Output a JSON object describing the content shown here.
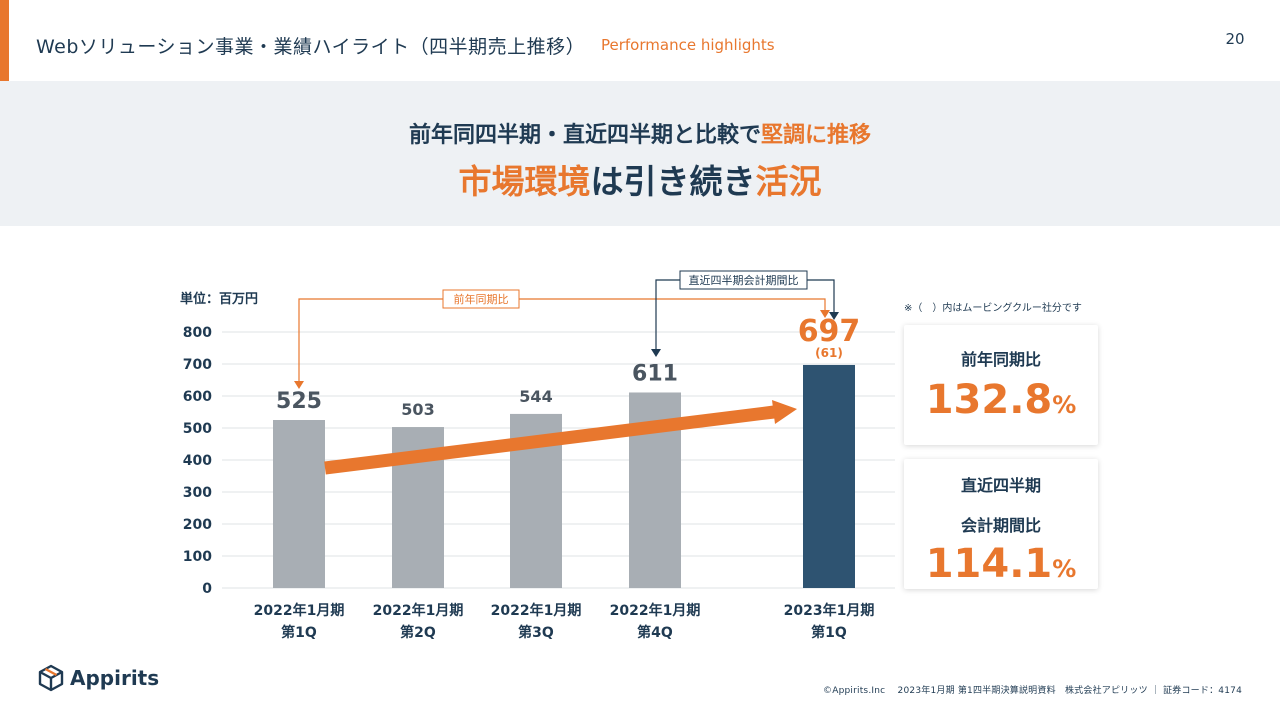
{
  "header": {
    "title": "Webソリューション事業・業績ハイライト（四半期売上推移）",
    "subtitle": "Performance highlights",
    "page_number": "20"
  },
  "banner": {
    "line1_a": "前年同四半期・直近四半期と比較で",
    "line1_b": "堅調に推移",
    "line2_a": "市場環境",
    "line2_b": "は引き続き",
    "line2_c": "活況"
  },
  "chart_data": {
    "type": "bar",
    "unit_label": "単位：百万円",
    "categories": [
      [
        "2022年1月期",
        "第1Q"
      ],
      [
        "2022年1月期",
        "第2Q"
      ],
      [
        "2022年1月期",
        "第3Q"
      ],
      [
        "2022年1月期",
        "第4Q"
      ],
      [
        "2023年1月期",
        "第1Q"
      ]
    ],
    "values": [
      525,
      503,
      544,
      611,
      697
    ],
    "highlight_index": 4,
    "highlight_sub_label": "(61)",
    "ylim": [
      0,
      800
    ],
    "yticks": [
      0,
      100,
      200,
      300,
      400,
      500,
      600,
      700,
      800
    ],
    "grid": true,
    "colors": {
      "bar": "#a8aeb4",
      "highlight": "#2e5371",
      "accent": "#e8772e",
      "grid": "#dfe3e6",
      "navy": "#1f3a52"
    },
    "annotations": {
      "yoy_label": "前年同期比",
      "qoq_label": "直近四半期会計期間比",
      "note": "※（　）内はムービングクルー社分です"
    }
  },
  "cards": {
    "yoy": {
      "label": "前年同期比",
      "value": "132.8",
      "unit": "%"
    },
    "qoq": {
      "label1": "直近四半期",
      "label2": "会計期間比",
      "value": "114.1",
      "unit": "%"
    }
  },
  "footer": {
    "logo_text": "Appirits",
    "logo_icon": "cube-icon",
    "credit": "©Appirits.Inc　 2023年1月期 第1四半期決算説明資料　株式会社アピリッツ ｜ 証券コード：4174"
  }
}
